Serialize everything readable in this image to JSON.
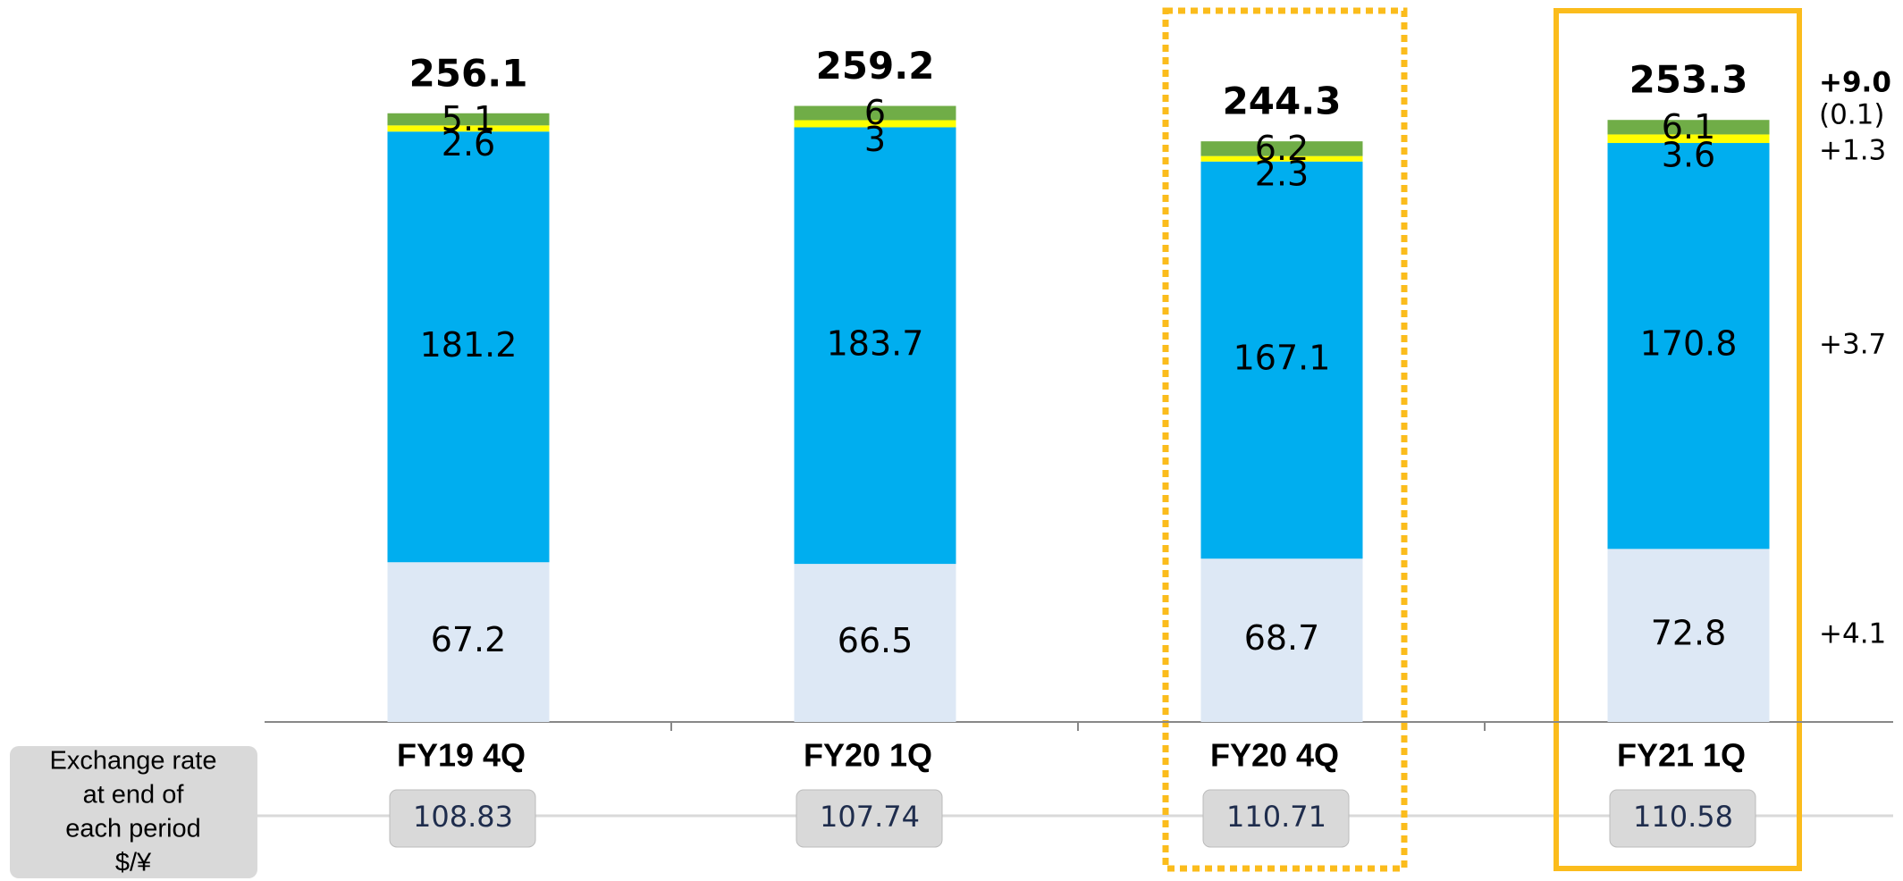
{
  "chart_data": {
    "type": "stacked_bar",
    "categories": [
      "FY19  4Q",
      "FY20 1Q",
      "FY20 4Q",
      "FY21 1Q"
    ],
    "series": [
      {
        "color": "#dde8f5",
        "values": [
          67.2,
          66.5,
          68.7,
          72.8
        ],
        "change": "+4.1"
      },
      {
        "color": "#00aeef",
        "values": [
          181.2,
          183.7,
          167.1,
          170.8
        ],
        "change": "+3.7"
      },
      {
        "color": "#ffff00",
        "values": [
          2.6,
          3.0,
          2.3,
          3.6
        ],
        "change": "+1.3"
      },
      {
        "color": "#70ad47",
        "values": [
          5.1,
          6.0,
          6.2,
          6.1
        ],
        "change": "(0.1)"
      }
    ],
    "totals": [
      256.1,
      259.2,
      244.3,
      253.3
    ],
    "total_change": "+9.0",
    "exchange_rate": {
      "label": [
        "Exchange rate",
        "at end of",
        "each period",
        "$/¥"
      ],
      "values": [
        108.83,
        107.74,
        110.71,
        110.58
      ]
    }
  }
}
